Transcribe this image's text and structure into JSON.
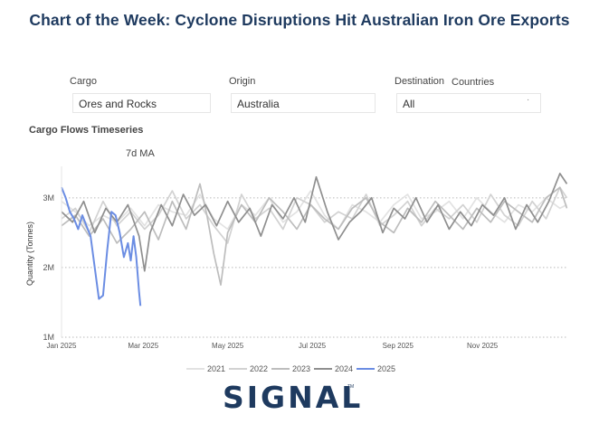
{
  "title": "Chart of the Week: Cyclone Disruptions Hit Australian Iron Ore Exports",
  "filters": {
    "cargo": {
      "label": "Cargo",
      "value": "Ores and Rocks"
    },
    "origin": {
      "label": "Origin",
      "value": "Australia"
    },
    "destination": {
      "label": "Destination",
      "extra_label": "Countries",
      "value": "All"
    }
  },
  "section_title": "Cargo Flows Timeseries",
  "ma_label": "7d MA",
  "logo": {
    "text": "SIGNAL",
    "tm": "TM"
  },
  "colors": {
    "y2021": "#e2e2e2",
    "y2022": "#d2d2d2",
    "y2023": "#bdbdbd",
    "y2024": "#8f8f8f",
    "y2025": "#6b8de3"
  },
  "chart_data": {
    "type": "line",
    "ylabel": "Quantity (Tonnes)",
    "ylim": [
      1000000,
      3400000
    ],
    "yticks": [
      {
        "value": 1000000,
        "label": "1M"
      },
      {
        "value": 2000000,
        "label": "2M"
      },
      {
        "value": 3000000,
        "label": "3M"
      }
    ],
    "xlim": [
      0,
      366
    ],
    "xticks": [
      {
        "day": 0,
        "label": "Jan 2025"
      },
      {
        "day": 59,
        "label": "Mar 2025"
      },
      {
        "day": 120,
        "label": "May 2025"
      },
      {
        "day": 181,
        "label": "Jul 2025"
      },
      {
        "day": 243,
        "label": "Sep 2025"
      },
      {
        "day": 304,
        "label": "Nov 2025"
      }
    ],
    "grid": "horizontal dotted",
    "legend_position": "bottom",
    "series": [
      {
        "name": "2021",
        "x": [
          0,
          10,
          20,
          30,
          40,
          50,
          60,
          70,
          80,
          90,
          100,
          110,
          120,
          130,
          140,
          150,
          160,
          170,
          180,
          190,
          200,
          210,
          220,
          230,
          240,
          250,
          260,
          270,
          280,
          290,
          300,
          310,
          320,
          330,
          340,
          350,
          360,
          365
        ],
        "values": [
          2950000,
          2800000,
          2600000,
          2750000,
          2650000,
          2850000,
          2600000,
          2900000,
          2800000,
          2750000,
          3050000,
          2700000,
          2550000,
          2900000,
          2750000,
          3000000,
          2650000,
          2800000,
          3100000,
          2750000,
          2550000,
          2900000,
          2800000,
          2650000,
          2900000,
          3050000,
          2700000,
          2800000,
          2950000,
          2700000,
          3000000,
          2800000,
          2650000,
          2900000,
          2800000,
          3000000,
          2850000,
          2900000
        ]
      },
      {
        "name": "2022",
        "x": [
          0,
          10,
          20,
          30,
          40,
          50,
          60,
          70,
          80,
          90,
          100,
          110,
          120,
          130,
          140,
          150,
          160,
          170,
          180,
          190,
          200,
          210,
          220,
          230,
          240,
          250,
          260,
          270,
          280,
          290,
          300,
          310,
          320,
          330,
          340,
          350,
          360,
          365
        ],
        "values": [
          2700000,
          2850000,
          2500000,
          2950000,
          2600000,
          2800000,
          2550000,
          2750000,
          3100000,
          2700000,
          2900000,
          2600000,
          2350000,
          3050000,
          2700000,
          2850000,
          2550000,
          3000000,
          2900000,
          2650000,
          2800000,
          2700000,
          3050000,
          2600000,
          2750000,
          2950000,
          2600000,
          2850000,
          2700000,
          2900000,
          2650000,
          3050000,
          2750000,
          2600000,
          2950000,
          2700000,
          3150000,
          3000000
        ]
      },
      {
        "name": "2023",
        "x": [
          0,
          10,
          20,
          30,
          40,
          50,
          60,
          70,
          80,
          90,
          100,
          105,
          110,
          115,
          120,
          130,
          140,
          150,
          160,
          170,
          180,
          190,
          200,
          210,
          220,
          230,
          240,
          250,
          260,
          270,
          280,
          290,
          300,
          310,
          320,
          330,
          340,
          350,
          360,
          365
        ],
        "values": [
          2600000,
          2750000,
          2450000,
          2700000,
          2350000,
          2550000,
          2800000,
          2400000,
          2950000,
          2550000,
          3200000,
          2750000,
          2200000,
          1750000,
          2500000,
          2900000,
          2650000,
          3000000,
          2800000,
          2550000,
          2900000,
          2700000,
          2550000,
          2850000,
          3000000,
          2650000,
          2500000,
          2850000,
          2650000,
          2950000,
          2750000,
          2550000,
          2850000,
          2650000,
          2950000,
          2800000,
          2650000,
          3000000,
          3150000,
          2850000
        ]
      },
      {
        "name": "2024",
        "x": [
          0,
          8,
          16,
          24,
          32,
          40,
          48,
          56,
          60,
          64,
          72,
          80,
          88,
          96,
          104,
          112,
          120,
          128,
          136,
          144,
          152,
          160,
          168,
          176,
          184,
          192,
          200,
          208,
          216,
          224,
          232,
          240,
          248,
          256,
          264,
          272,
          280,
          288,
          296,
          304,
          312,
          320,
          328,
          336,
          344,
          352,
          360,
          365
        ],
        "values": [
          2800000,
          2650000,
          2950000,
          2500000,
          2850000,
          2650000,
          2900000,
          2450000,
          1950000,
          2500000,
          2900000,
          2600000,
          3050000,
          2750000,
          2900000,
          2600000,
          2950000,
          2650000,
          2850000,
          2450000,
          2900000,
          2700000,
          3000000,
          2650000,
          3300000,
          2800000,
          2400000,
          2650000,
          2800000,
          3000000,
          2500000,
          2850000,
          2700000,
          3000000,
          2650000,
          2900000,
          2550000,
          2800000,
          2600000,
          2900000,
          2750000,
          3000000,
          2550000,
          2900000,
          2650000,
          2950000,
          3350000,
          3200000
        ]
      },
      {
        "name": "2025",
        "x": [
          0,
          3,
          6,
          9,
          12,
          15,
          18,
          21,
          24,
          27,
          30,
          33,
          36,
          39,
          42,
          45,
          48,
          50,
          52,
          54,
          56,
          57
        ],
        "values": [
          3150000,
          3000000,
          2800000,
          2700000,
          2550000,
          2750000,
          2600000,
          2450000,
          2000000,
          1550000,
          1600000,
          2250000,
          2800000,
          2750000,
          2500000,
          2150000,
          2350000,
          2100000,
          2450000,
          2150000,
          1650000,
          1450000
        ]
      }
    ]
  }
}
